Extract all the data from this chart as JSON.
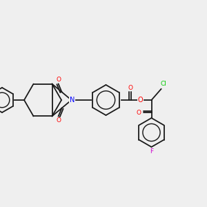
{
  "bg_color": "#efefef",
  "bond_color": "#1a1a1a",
  "atom_colors": {
    "N": "#0000ff",
    "O": "#ff0000",
    "Cl": "#00cc00",
    "F": "#cc00cc"
  },
  "lw": 1.3
}
